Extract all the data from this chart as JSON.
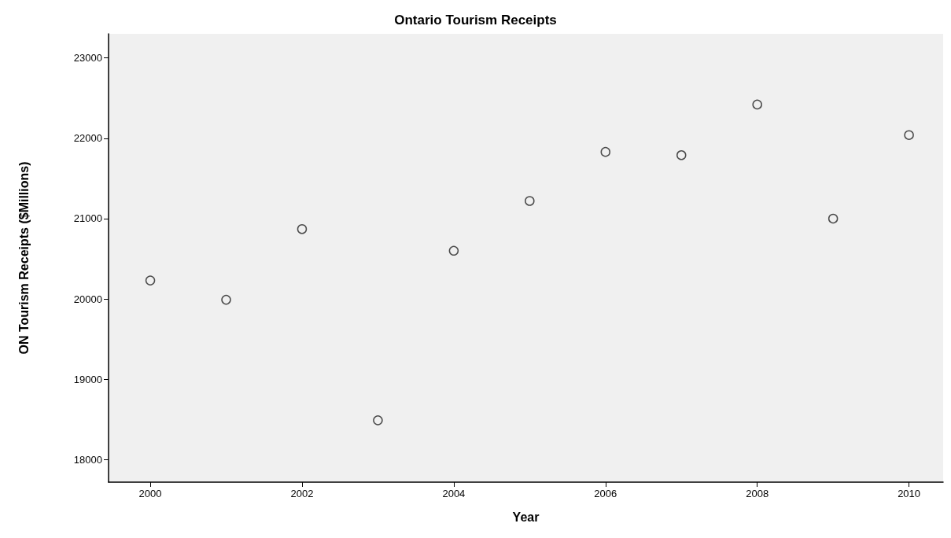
{
  "chart_data": {
    "type": "scatter",
    "title": "Ontario Tourism Receipts",
    "xlabel": "Year",
    "ylabel": "ON Tourism Receipts ($Millions)",
    "x": [
      2000,
      2001,
      2002,
      2003,
      2004,
      2005,
      2006,
      2007,
      2008,
      2009,
      2010
    ],
    "values": [
      20230,
      19990,
      20870,
      18490,
      20600,
      21220,
      21830,
      21790,
      22420,
      21000,
      22040
    ],
    "color": "#222222",
    "marker": "circle",
    "grid": false,
    "xlim": [
      1999.45,
      2010.45
    ],
    "xticks": [
      2000,
      2002,
      2004,
      2006,
      2008,
      2010
    ],
    "ylim": [
      17720,
      23300
    ],
    "yticks": [
      18000,
      19000,
      20000,
      21000,
      22000,
      23000
    ]
  }
}
